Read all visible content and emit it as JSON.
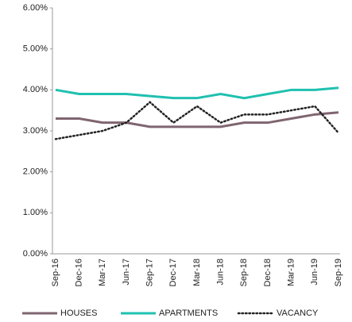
{
  "chart_data": {
    "type": "line",
    "categories": [
      "Sep-16",
      "Dec-16",
      "Mar-17",
      "Jun-17",
      "Sep-17",
      "Dec-17",
      "Mar-18",
      "Jun-18",
      "Sep-18",
      "Dec-18",
      "Mar-19",
      "Jun-19",
      "Sep-19"
    ],
    "series": [
      {
        "name": "HOUSES",
        "color": "#7f6570",
        "style": "solid",
        "values": [
          3.3,
          3.3,
          3.2,
          3.2,
          3.1,
          3.1,
          3.1,
          3.1,
          3.2,
          3.2,
          3.3,
          3.4,
          3.45
        ]
      },
      {
        "name": "APARTMENTS",
        "color": "#1fc0b0",
        "style": "solid",
        "values": [
          4.0,
          3.9,
          3.9,
          3.9,
          3.85,
          3.8,
          3.8,
          3.9,
          3.8,
          3.9,
          4.0,
          4.0,
          4.05
        ]
      },
      {
        "name": "VACANCY",
        "color": "#222222",
        "style": "dotted",
        "values": [
          2.8,
          2.9,
          3.0,
          3.2,
          3.7,
          3.2,
          3.6,
          3.2,
          3.4,
          3.4,
          3.5,
          3.6,
          2.95
        ]
      }
    ],
    "ylim": [
      0,
      6
    ],
    "yticks": [
      {
        "value": 0,
        "label": "0.00%"
      },
      {
        "value": 1,
        "label": "1.00%"
      },
      {
        "value": 2,
        "label": "2.00%"
      },
      {
        "value": 3,
        "label": "3.00%"
      },
      {
        "value": 4,
        "label": "4.00%"
      },
      {
        "value": 5,
        "label": "5.00%"
      },
      {
        "value": 6,
        "label": "6.00%"
      }
    ],
    "grid": false,
    "legend": "bottom"
  }
}
